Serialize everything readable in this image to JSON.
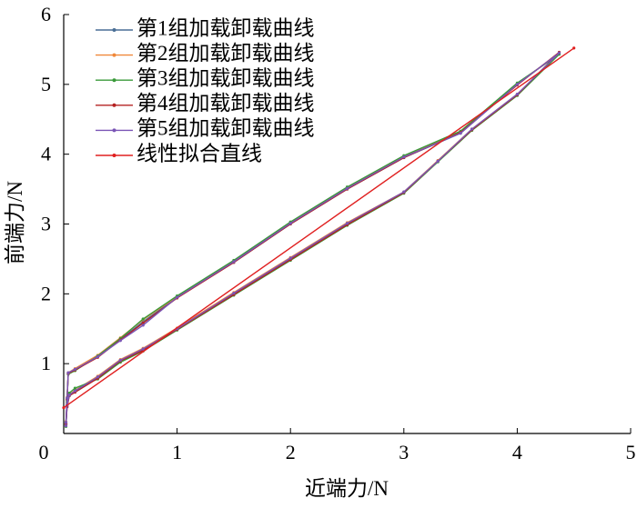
{
  "chart_data": {
    "type": "line",
    "x_label": "近端力/N",
    "y_label": "前端力/N",
    "xlim": [
      0,
      5
    ],
    "ylim": [
      0,
      6
    ],
    "xticks": [
      0,
      1,
      2,
      3,
      4,
      5
    ],
    "yticks": [
      0,
      1,
      2,
      3,
      4,
      5,
      6
    ],
    "legend": "top-left",
    "series": [
      {
        "name": "第1组加载卸载曲线",
        "color": "#4a6f96",
        "x": [
          0.02,
          0.03,
          0.05,
          0.1,
          0.3,
          0.5,
          0.7,
          1.0,
          1.5,
          2.0,
          2.5,
          3.0,
          3.3,
          3.6,
          4.0,
          4.37,
          4.0,
          3.5,
          3.0,
          2.5,
          2.0,
          1.5,
          1.0,
          0.7,
          0.5,
          0.3,
          0.1,
          0.04,
          0.03,
          0.02
        ],
        "values": [
          0.12,
          0.4,
          0.55,
          0.6,
          0.8,
          1.05,
          1.2,
          1.5,
          2.0,
          2.5,
          3.0,
          3.45,
          3.9,
          4.35,
          4.85,
          5.45,
          5.0,
          4.3,
          3.95,
          3.5,
          3.0,
          2.45,
          1.95,
          1.6,
          1.35,
          1.1,
          0.92,
          0.86,
          0.5,
          0.15
        ]
      },
      {
        "name": "第2组加载卸载曲线",
        "color": "#f0883a",
        "x": [
          0.02,
          0.03,
          0.05,
          0.1,
          0.3,
          0.5,
          0.7,
          1.0,
          1.5,
          2.0,
          2.5,
          3.0,
          3.3,
          3.6,
          4.0,
          4.37,
          4.0,
          3.5,
          3.0,
          2.5,
          2.0,
          1.5,
          1.0,
          0.7,
          0.5,
          0.3,
          0.1,
          0.04,
          0.03,
          0.02
        ],
        "values": [
          0.14,
          0.42,
          0.56,
          0.62,
          0.82,
          1.06,
          1.22,
          1.51,
          2.02,
          2.52,
          3.02,
          3.46,
          3.91,
          4.36,
          4.86,
          5.44,
          5.01,
          4.32,
          3.97,
          3.52,
          3.02,
          2.47,
          1.96,
          1.63,
          1.37,
          1.12,
          0.93,
          0.87,
          0.52,
          0.17
        ]
      },
      {
        "name": "第3组加载卸载曲线",
        "color": "#3a9a3a",
        "x": [
          0.02,
          0.03,
          0.05,
          0.1,
          0.3,
          0.5,
          0.7,
          1.0,
          1.5,
          2.0,
          2.5,
          3.0,
          3.3,
          3.6,
          4.0,
          4.37,
          4.0,
          3.5,
          3.0,
          2.5,
          2.0,
          1.5,
          1.0,
          0.7,
          0.5,
          0.3,
          0.1,
          0.04,
          0.03,
          0.02
        ],
        "values": [
          0.1,
          0.45,
          0.58,
          0.65,
          0.78,
          1.02,
          1.18,
          1.48,
          1.98,
          2.48,
          2.98,
          3.44,
          3.89,
          4.34,
          4.84,
          5.43,
          5.02,
          4.33,
          3.98,
          3.53,
          3.03,
          2.48,
          1.97,
          1.64,
          1.36,
          1.11,
          0.9,
          0.85,
          0.48,
          0.13
        ]
      },
      {
        "name": "第4组加载卸载曲线",
        "color": "#b52222",
        "x": [
          0.02,
          0.03,
          0.05,
          0.1,
          0.3,
          0.5,
          0.7,
          1.0,
          1.5,
          2.0,
          2.5,
          3.0,
          3.3,
          3.6,
          4.0,
          4.37,
          4.0,
          3.5,
          3.0,
          2.5,
          2.0,
          1.5,
          1.0,
          0.7,
          0.5,
          0.3,
          0.1,
          0.04,
          0.03,
          0.02
        ],
        "values": [
          0.13,
          0.38,
          0.54,
          0.59,
          0.79,
          1.04,
          1.19,
          1.49,
          1.99,
          2.49,
          2.99,
          3.45,
          3.9,
          4.35,
          4.85,
          5.46,
          4.99,
          4.31,
          3.95,
          3.5,
          3.0,
          2.45,
          1.94,
          1.58,
          1.34,
          1.09,
          0.91,
          0.86,
          0.49,
          0.14
        ]
      },
      {
        "name": "第5组加载卸载曲线",
        "color": "#7a55b5",
        "x": [
          0.02,
          0.03,
          0.05,
          0.1,
          0.3,
          0.5,
          0.7,
          1.0,
          1.5,
          2.0,
          2.5,
          3.0,
          3.3,
          3.6,
          4.0,
          4.37,
          4.0,
          3.5,
          3.0,
          2.5,
          2.0,
          1.5,
          1.0,
          0.7,
          0.5,
          0.3,
          0.1,
          0.04,
          0.03,
          0.02
        ],
        "values": [
          0.11,
          0.41,
          0.55,
          0.61,
          0.81,
          1.05,
          1.21,
          1.5,
          2.01,
          2.51,
          3.01,
          3.46,
          3.9,
          4.36,
          4.86,
          5.45,
          5.0,
          4.3,
          3.96,
          3.51,
          3.01,
          2.46,
          1.95,
          1.55,
          1.33,
          1.1,
          0.92,
          0.87,
          0.51,
          0.16
        ]
      },
      {
        "name": "线性拟合直线",
        "color": "#e02020",
        "x": [
          0,
          4.5
        ],
        "values": [
          0.37,
          5.52
        ]
      }
    ]
  }
}
